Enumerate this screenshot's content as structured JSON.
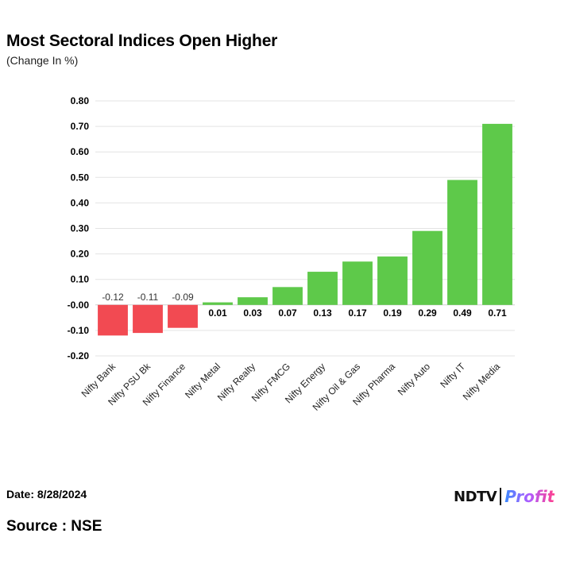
{
  "header": {
    "title": "Most Sectoral Indices Open Higher",
    "subtitle": "(Change In %)"
  },
  "footer": {
    "date": "Date: 8/28/2024",
    "source": "Source : NSE",
    "logo_text": "NDTV",
    "logo_subtext": "Profit"
  },
  "colors": {
    "negative": "#f24a52",
    "positive": "#5ec94a",
    "grid": "#e3e3e3",
    "zero_line": "#cfcfcf",
    "text": "#000000"
  },
  "chart_data": {
    "type": "bar",
    "title": "Most Sectoral Indices Open Higher",
    "ylabel": "(Change In %)",
    "xlabel": "",
    "categories": [
      "Nifty Bank",
      "Nifty PSU Bk",
      "Nifty Finance",
      "Nifty Metal",
      "Nifty Realty",
      "Nifty FMCG",
      "Nifty Energy",
      "Nifty Oil & Gas",
      "Nifty Pharma",
      "Nifty Auto",
      "Nifty IT",
      "Nifty Media"
    ],
    "values": [
      -0.12,
      -0.11,
      -0.09,
      0.01,
      0.03,
      0.07,
      0.13,
      0.17,
      0.19,
      0.29,
      0.49,
      0.71
    ],
    "value_labels": [
      "-0.12",
      "-0.11",
      "-0.09",
      "0.01",
      "0.03",
      "0.07",
      "0.13",
      "0.17",
      "0.19",
      "0.29",
      "0.49",
      "0.71"
    ],
    "ylim": [
      -0.2,
      0.8
    ],
    "yticks": [
      0.8,
      0.7,
      0.6,
      0.5,
      0.4,
      0.3,
      0.2,
      0.1,
      0.0,
      -0.1,
      -0.2
    ],
    "ytick_labels": [
      "0.80",
      "0.70",
      "0.60",
      "0.50",
      "0.40",
      "0.30",
      "0.20",
      "0.10",
      "-0.00",
      "-0.10",
      "-0.20"
    ],
    "grid": true,
    "legend": "none"
  }
}
